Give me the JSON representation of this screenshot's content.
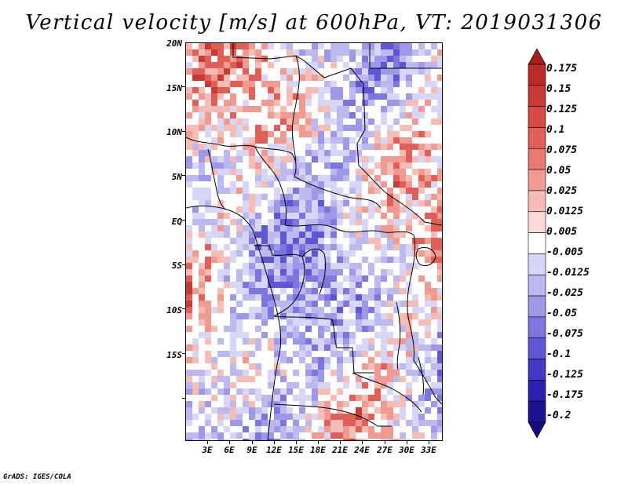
{
  "title": "Vertical velocity [m/s] at 600hPa, VT: 2019031306",
  "footer": "GrADS: IGES/COLA",
  "map": {
    "lat_labels": [
      "20N",
      "15N",
      "10N",
      "5N",
      "EQ",
      "5S",
      "10S",
      "15S"
    ],
    "lon_labels": [
      "3E",
      "6E",
      "9E",
      "12E",
      "15E",
      "18E",
      "21E",
      "24E",
      "27E",
      "30E",
      "33E"
    ]
  },
  "colorbar": {
    "labels": [
      "0.175",
      "0.15",
      "0.125",
      "0.1",
      "0.075",
      "0.05",
      "0.025",
      "0.0125",
      "0.005",
      "-0.005",
      "-0.0125",
      "-0.025",
      "-0.05",
      "-0.075",
      "-0.1",
      "-0.125",
      "-0.175",
      "-0.2"
    ],
    "colors": [
      "#a51d1d",
      "#b82b28",
      "#c83a36",
      "#d64a44",
      "#e05f58",
      "#e87a72",
      "#f09a92",
      "#f6bcb6",
      "#fbdcd8",
      "#ffffff",
      "#d8d6f6",
      "#bcb8f0",
      "#9e98e8",
      "#7e76df",
      "#5f56d4",
      "#4339c6",
      "#2c21ae",
      "#1c1394",
      "#140c7c"
    ]
  }
}
